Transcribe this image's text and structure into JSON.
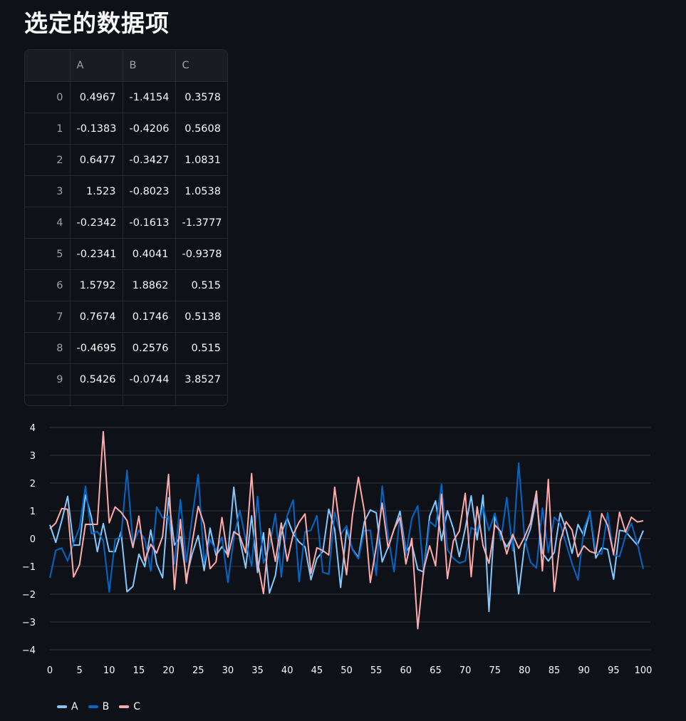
{
  "page": {
    "title": "选定的数据项"
  },
  "table": {
    "columns": [
      "",
      "A",
      "B",
      "C"
    ],
    "rows": [
      [
        "0",
        "0.4967",
        "-1.4154",
        "0.3578"
      ],
      [
        "1",
        "-0.1383",
        "-0.4206",
        "0.5608"
      ],
      [
        "2",
        "0.6477",
        "-0.3427",
        "1.0831"
      ],
      [
        "3",
        "1.523",
        "-0.8023",
        "1.0538"
      ],
      [
        "4",
        "-0.2342",
        "-0.1613",
        "-1.3777"
      ],
      [
        "5",
        "-0.2341",
        "0.4041",
        "-0.9378"
      ],
      [
        "6",
        "1.5792",
        "1.8862",
        "0.515"
      ],
      [
        "7",
        "0.7674",
        "0.1746",
        "0.5138"
      ],
      [
        "8",
        "-0.4695",
        "0.2576",
        "0.515"
      ],
      [
        "9",
        "0.5426",
        "-0.0744",
        "3.8527"
      ]
    ]
  },
  "chart_data": {
    "type": "line",
    "title": "",
    "xlabel": "",
    "ylabel": "",
    "xlim": [
      0,
      100
    ],
    "ylim": [
      -4,
      4
    ],
    "x_ticks": [
      0,
      5,
      10,
      15,
      20,
      25,
      30,
      35,
      40,
      45,
      50,
      55,
      60,
      65,
      70,
      75,
      80,
      85,
      90,
      95,
      100
    ],
    "y_ticks": [
      4,
      3,
      2,
      1,
      0,
      -1,
      -2,
      -3,
      -4
    ],
    "grid": true,
    "legend_position": "bottom-left",
    "series": [
      {
        "name": "A",
        "color": "#83c9ff",
        "values": [
          0.4967,
          -0.1383,
          0.6477,
          1.523,
          -0.2342,
          -0.2341,
          1.5792,
          0.7674,
          -0.4695,
          0.5426,
          -0.46,
          -0.47,
          0.24,
          -1.91,
          -1.72,
          -0.56,
          -1.01,
          0.31,
          -0.91,
          -1.41,
          1.47,
          -0.23,
          0.07,
          -1.42,
          -0.54,
          0.11,
          -1.15,
          0.38,
          -0.6,
          -0.29,
          -0.6,
          1.85,
          -0.01,
          -1.06,
          0.82,
          -1.22,
          0.21,
          -1.96,
          -1.33,
          0.2,
          0.74,
          0.17,
          -0.12,
          -0.3,
          -1.48,
          -0.72,
          -0.46,
          1.06,
          0.34,
          -1.76,
          0.32,
          -0.39,
          -0.68,
          0.61,
          1.03,
          0.93,
          -0.84,
          -0.31,
          0.33,
          0.98,
          -0.48,
          -0.19,
          -1.11,
          -1.2,
          0.81,
          1.36,
          -0.07,
          1.0,
          0.36,
          -0.65,
          0.36,
          1.54,
          -0.04,
          1.56,
          -2.62,
          0.82,
          0.09,
          -0.3,
          0.09,
          -1.99,
          -0.22,
          0.36,
          1.48,
          -0.52,
          -0.81,
          -0.5,
          0.92,
          0.33,
          -0.53,
          0.51,
          0.1,
          0.97,
          -0.7,
          -0.33,
          -0.39,
          -1.46,
          0.3,
          0.26,
          0.01,
          -0.23,
          0.29
        ]
      },
      {
        "name": "B",
        "color": "#0068c9",
        "values": [
          -1.4154,
          -0.4206,
          -0.3427,
          -0.8023,
          -0.1613,
          0.4041,
          1.8862,
          0.1746,
          0.2576,
          -0.0744,
          -1.92,
          -0.03,
          0.06,
          2.46,
          -0.19,
          0.3,
          -0.04,
          -1.17,
          1.14,
          0.75,
          0.79,
          -0.91,
          1.4,
          -0.85,
          0.8,
          2.31,
          -0.84,
          -0.04,
          -0.43,
          0.05,
          -1.58,
          0.02,
          1.02,
          -0.03,
          -0.99,
          1.52,
          -0.88,
          -0.3,
          0.89,
          -1.38,
          0.83,
          1.39,
          -1.55,
          0.24,
          0.3,
          0.83,
          -1.21,
          -1.28,
          0.95,
          0.14,
          0.46,
          -0.41,
          -0.73,
          0.29,
          0.3,
          -1.32,
          1.89,
          0.09,
          -1.19,
          0.8,
          -0.59,
          0.74,
          1.18,
          -1.28,
          0.62,
          0.43,
          1.96,
          -0.4,
          -0.71,
          -0.88,
          -0.81,
          0.4,
          0.26,
          1.14,
          0.29,
          0.91,
          -0.05,
          1.48,
          -0.44,
          2.72,
          0.02,
          -0.85,
          -1.06,
          1.1,
          -0.5,
          0.77,
          0.54,
          -0.19,
          -0.9,
          -1.49,
          0.36,
          0.95,
          -0.49,
          -0.56,
          0.93,
          -0.6,
          -0.64,
          0.09,
          0.55,
          -0.18,
          -1.09
        ]
      },
      {
        "name": "C",
        "color": "#ffabab",
        "values": [
          0.3578,
          0.5608,
          1.0831,
          1.0538,
          -1.3777,
          -0.9378,
          0.515,
          0.5138,
          0.515,
          3.8527,
          0.57,
          1.14,
          0.95,
          0.65,
          -0.32,
          0.81,
          -0.8,
          -0.2,
          -0.52,
          0.08,
          2.31,
          -1.83,
          0.69,
          -1.61,
          -0.12,
          1.16,
          0.52,
          -1.08,
          -0.84,
          0.76,
          -0.66,
          0.25,
          0.1,
          -0.51,
          2.34,
          -0.82,
          -1.98,
          0.36,
          -0.82,
          0.56,
          -0.81,
          0.14,
          0.59,
          0.89,
          -1.25,
          -0.33,
          -0.43,
          -0.59,
          1.85,
          0.16,
          -1.3,
          0.84,
          2.21,
          0.99,
          -1.58,
          -0.3,
          1.28,
          -0.34,
          0.34,
          0.76,
          -0.91,
          0.01,
          -3.24,
          -1.11,
          -0.26,
          -0.98,
          1.6,
          -1.44,
          -0.08,
          0.27,
          1.63,
          -1.37,
          1.15,
          -0.25,
          -0.89,
          0.49,
          0.25,
          -0.55,
          0.15,
          -0.35,
          0.06,
          0.57,
          1.71,
          -1.16,
          2.13,
          -1.9,
          -0.11,
          0.61,
          0.31,
          -0.65,
          -0.26,
          -0.46,
          -0.53,
          0.9,
          0.48,
          -0.57,
          0.95,
          0.24,
          0.77,
          0.6,
          0.64
        ]
      }
    ]
  }
}
